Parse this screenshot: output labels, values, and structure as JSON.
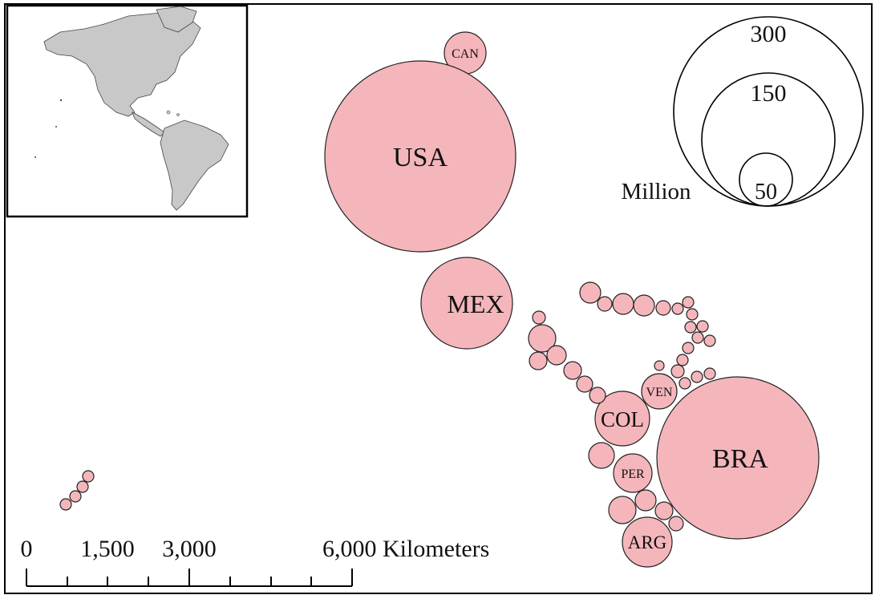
{
  "map": {
    "bubble_color": "#f4b6bb",
    "labelled_countries": [
      {
        "code": "CAN",
        "size": "small"
      },
      {
        "code": "USA",
        "size": "large"
      },
      {
        "code": "MEX",
        "size": "large"
      },
      {
        "code": "VEN",
        "size": "small"
      },
      {
        "code": "COL",
        "size": "medium"
      },
      {
        "code": "BRA",
        "size": "large"
      },
      {
        "code": "PER",
        "size": "small"
      },
      {
        "code": "ARG",
        "size": "medium"
      }
    ]
  },
  "legend": {
    "unit": "Million",
    "values": [
      "300",
      "150",
      "50"
    ]
  },
  "scale_bar": {
    "ticks": [
      "0",
      "1,500",
      "3,000",
      "6,000 Kilometers"
    ]
  },
  "inset": {
    "land_color": "#c8c8c8"
  }
}
